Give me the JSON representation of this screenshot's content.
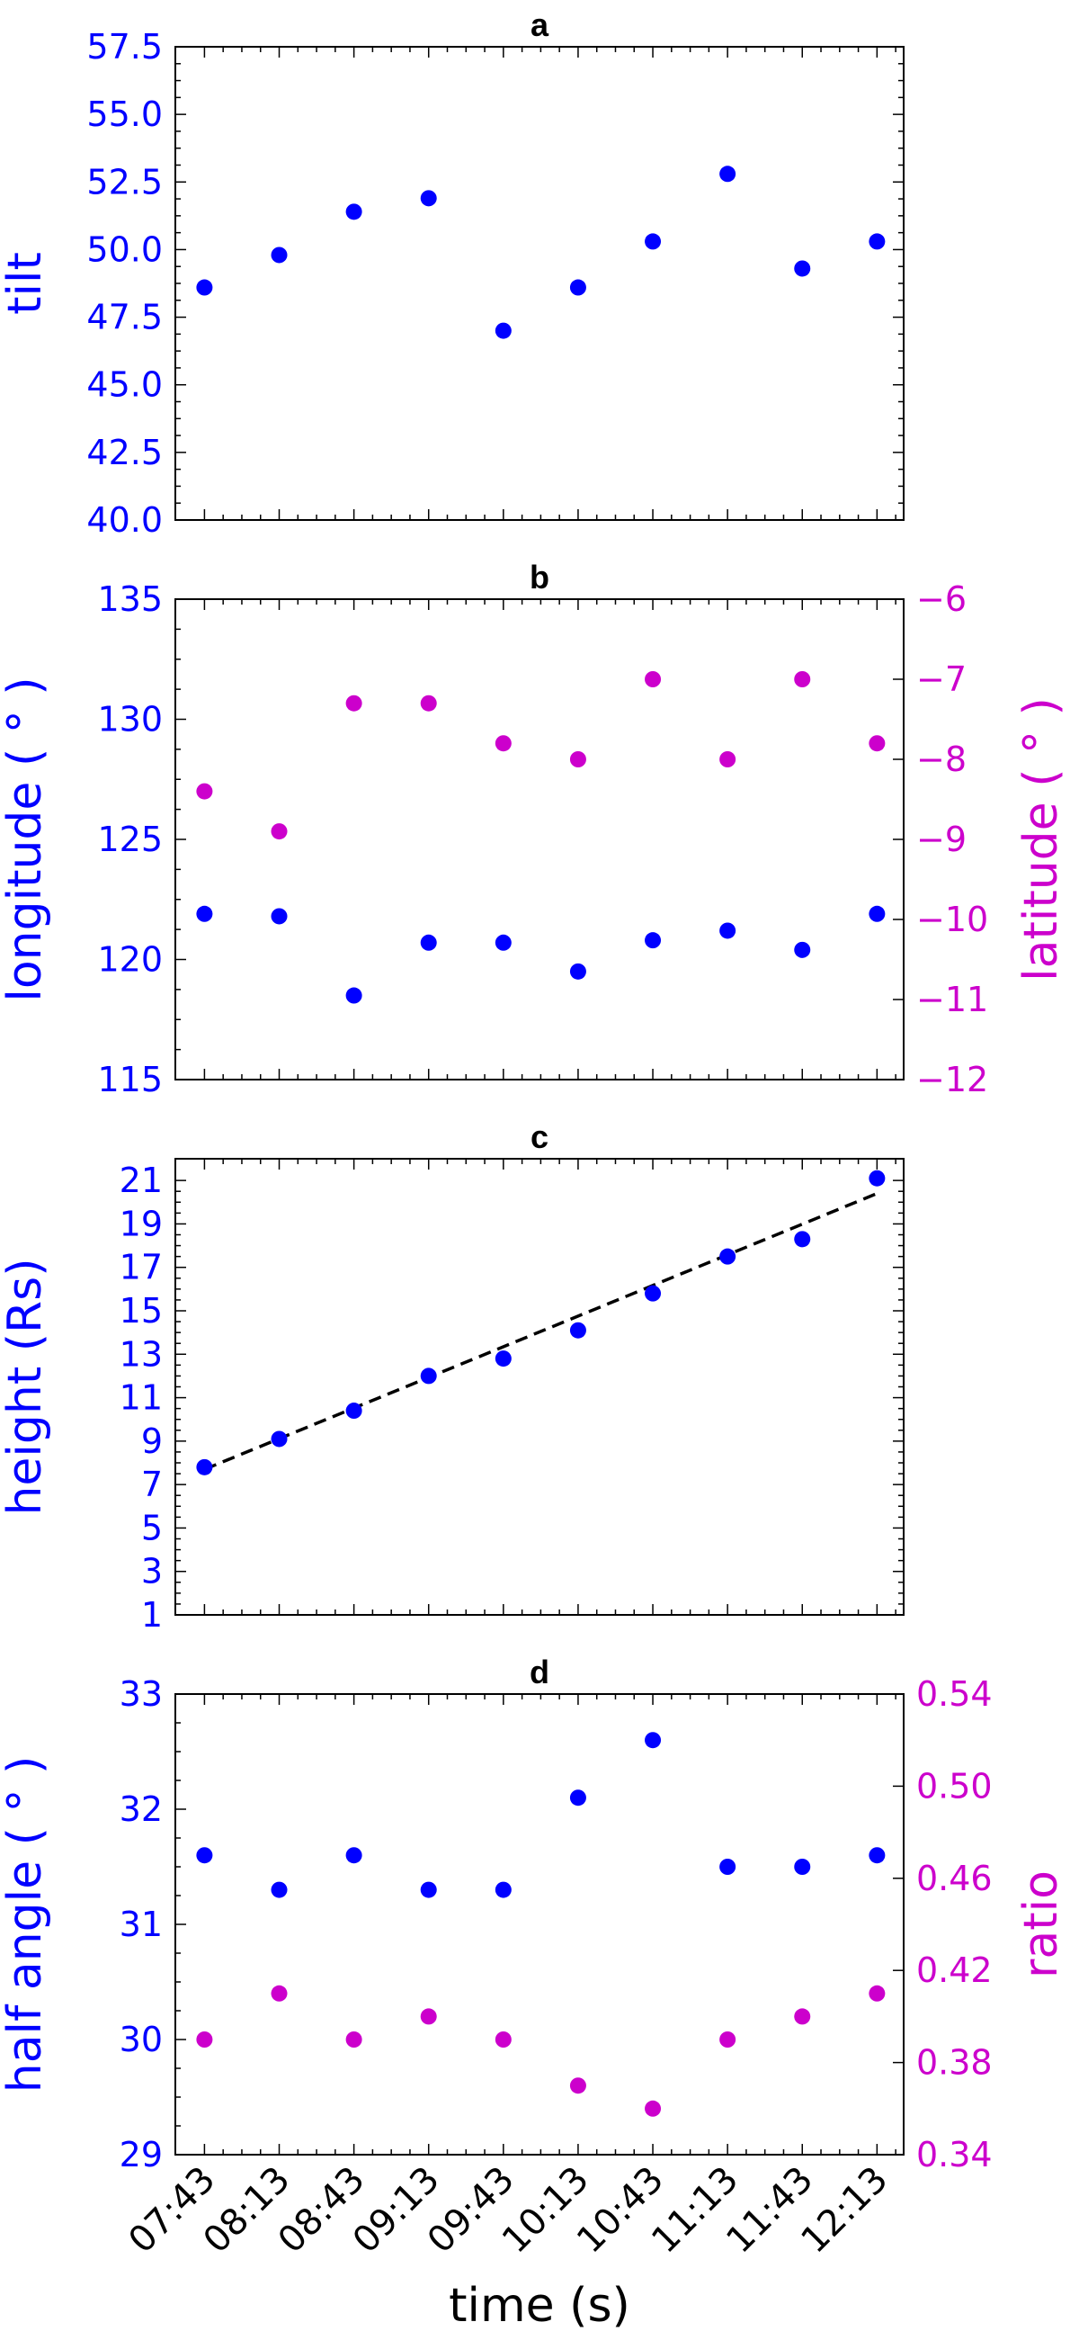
{
  "chart_data": [
    {
      "type": "scatter",
      "title": "a",
      "categories": [
        "07:43",
        "08:13",
        "08:43",
        "09:13",
        "09:43",
        "10:13",
        "10:43",
        "11:13",
        "11:43",
        "12:13"
      ],
      "ylabel": "tilt",
      "ylim": [
        40.0,
        57.5
      ],
      "yticks": [
        "40.0",
        "42.5",
        "45.0",
        "47.5",
        "50.0",
        "52.5",
        "55.0",
        "57.5"
      ],
      "series": [
        {
          "axis": "left",
          "color": "#0000ff",
          "values": [
            48.6,
            49.8,
            51.4,
            51.9,
            47.0,
            48.6,
            50.3,
            52.8,
            49.3,
            50.3
          ]
        }
      ]
    },
    {
      "type": "scatter",
      "title": "b",
      "categories": [
        "07:43",
        "08:13",
        "08:43",
        "09:13",
        "09:43",
        "10:13",
        "10:43",
        "11:13",
        "11:43",
        "12:13"
      ],
      "ylabel": "longitude ( ° )",
      "ylim": [
        115,
        135
      ],
      "yticks": [
        "115",
        "120",
        "125",
        "130",
        "135"
      ],
      "y2label": "latitude ( ° )",
      "y2lim": [
        -12,
        -6
      ],
      "y2ticks": [
        "−12",
        "−11",
        "−10",
        "−9",
        "−8",
        "−7",
        "−6"
      ],
      "series": [
        {
          "axis": "left",
          "color": "#0000ff",
          "values": [
            121.9,
            121.8,
            118.5,
            120.7,
            120.7,
            119.5,
            120.8,
            121.2,
            120.4,
            121.9
          ]
        },
        {
          "axis": "right",
          "color": "#cc00cc",
          "values": [
            -8.4,
            -8.9,
            -7.3,
            -7.3,
            -7.8,
            -8.0,
            -7.0,
            -8.0,
            -7.0,
            -7.8
          ]
        }
      ]
    },
    {
      "type": "scatter",
      "title": "c",
      "categories": [
        "07:43",
        "08:13",
        "08:43",
        "09:13",
        "09:43",
        "10:13",
        "10:43",
        "11:13",
        "11:43",
        "12:13"
      ],
      "ylabel": "height (Rs)",
      "ylim": [
        1,
        22
      ],
      "yticks": [
        "1",
        "3",
        "5",
        "7",
        "9",
        "11",
        "13",
        "15",
        "17",
        "19",
        "21"
      ],
      "series": [
        {
          "axis": "left",
          "color": "#0000ff",
          "values": [
            7.8,
            9.1,
            10.4,
            12.0,
            12.8,
            14.1,
            15.8,
            17.5,
            18.3,
            21.1
          ]
        }
      ],
      "fit_line": {
        "color": "#000000",
        "style": "dashed",
        "x_index": [
          0,
          9
        ],
        "values": [
          7.7,
          20.4
        ]
      }
    },
    {
      "type": "scatter",
      "title": "d",
      "categories": [
        "07:43",
        "08:13",
        "08:43",
        "09:13",
        "09:43",
        "10:13",
        "10:43",
        "11:13",
        "11:43",
        "12:13"
      ],
      "xlabel": "time (s)",
      "ylabel": "half angle ( ° )",
      "ylim": [
        29,
        33
      ],
      "yticks": [
        "29",
        "30",
        "31",
        "32",
        "33"
      ],
      "y2label": "ratio",
      "y2lim": [
        0.34,
        0.54
      ],
      "y2ticks": [
        "0.34",
        "0.38",
        "0.42",
        "0.46",
        "0.50",
        "0.54"
      ],
      "series": [
        {
          "axis": "left",
          "color": "#0000ff",
          "values": [
            31.6,
            31.3,
            31.6,
            31.3,
            31.3,
            32.1,
            32.6,
            31.5,
            31.5,
            31.6
          ]
        },
        {
          "axis": "right",
          "color": "#cc00cc",
          "values": [
            0.39,
            0.41,
            0.39,
            0.4,
            0.39,
            0.37,
            0.36,
            0.39,
            0.4,
            0.41
          ]
        }
      ]
    }
  ]
}
